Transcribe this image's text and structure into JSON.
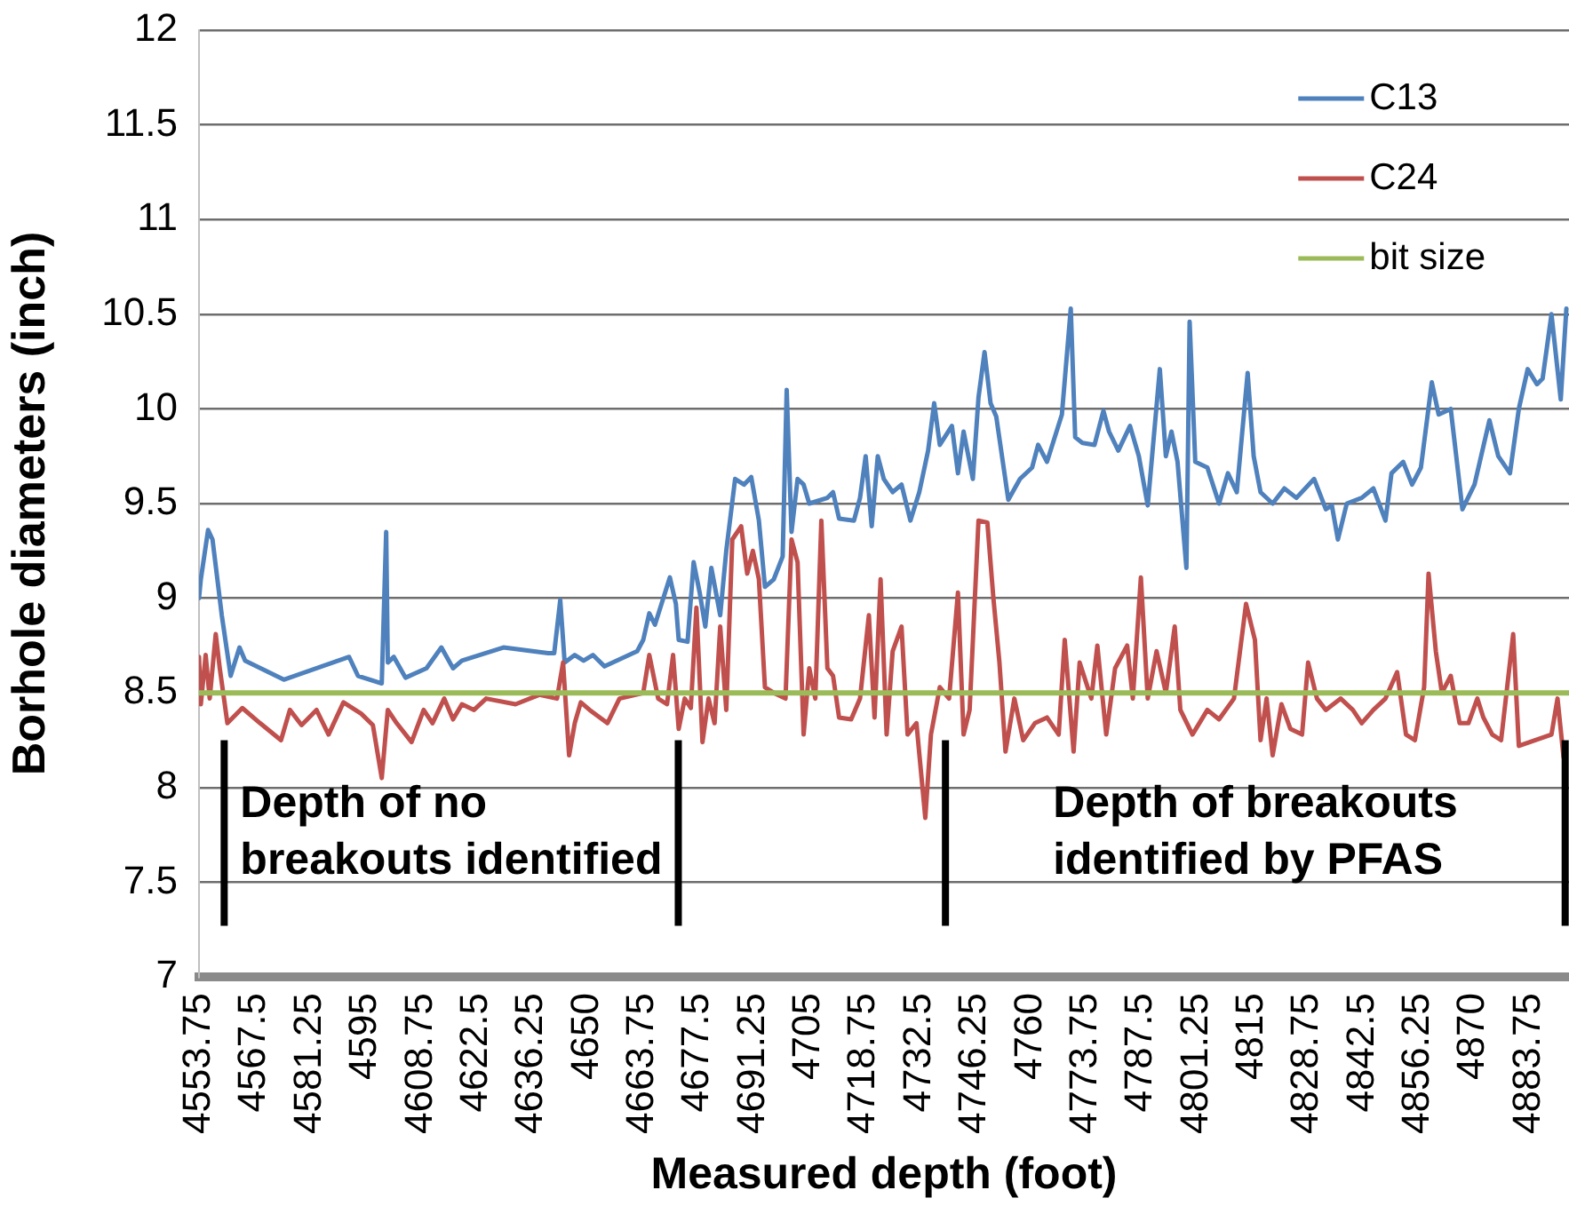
{
  "chart_data": {
    "type": "line",
    "xlabel": "Measured depth (foot)",
    "ylabel": "Borhole diameters (inch)",
    "xlim": [
      4553.75,
      4893.75
    ],
    "xticks": [
      4553.75,
      4567.5,
      4581.25,
      4595,
      4608.75,
      4622.5,
      4636.25,
      4650,
      4663.75,
      4677.5,
      4691.25,
      4705,
      4718.75,
      4732.5,
      4746.25,
      4760,
      4773.75,
      4787.5,
      4801.25,
      4815,
      4828.75,
      4842.5,
      4856.25,
      4870,
      4883.75
    ],
    "ylim": [
      7,
      12
    ],
    "yticks": [
      7,
      7.5,
      8,
      8.5,
      9,
      9.5,
      10,
      10.5,
      11,
      11.5,
      12
    ],
    "grid": "y",
    "legend": "top right",
    "series": [
      {
        "name": "C13",
        "color": "#4f81bd",
        "x": [
          4553.75,
          4554.2,
          4556.0,
          4557.1,
          4559.4,
          4561.6,
          4563.8,
          4565.2,
          4574.8,
          4591.0,
          4593.2,
          4599.1,
          4600.2,
          4600.6,
          4602.1,
          4605.0,
          4610.2,
          4613.9,
          4616.8,
          4619.0,
          4629.3,
          4640.4,
          4641.9,
          4643.4,
          4644.5,
          4647.0,
          4649.2,
          4651.5,
          4654.4,
          4662.5,
          4664.0,
          4665.5,
          4666.9,
          4670.6,
          4672.1,
          4672.8,
          4675.0,
          4676.5,
          4678.0,
          4679.4,
          4680.9,
          4683.1,
          4684.6,
          4686.8,
          4689.0,
          4690.8,
          4692.7,
          4694.2,
          4696.4,
          4698.6,
          4699.6,
          4700.8,
          4702.3,
          4703.8,
          4705.2,
          4709.7,
          4711.1,
          4712.6,
          4716.3,
          4717.8,
          4719.2,
          4720.7,
          4722.2,
          4723.7,
          4725.9,
          4728.1,
          4730.3,
          4732.5,
          4734.7,
          4736.2,
          4737.6,
          4740.6,
          4742.1,
          4743.5,
          4745.8,
          4747.2,
          4748.7,
          4750.2,
          4751.6,
          4754.6,
          4757.5,
          4760.5,
          4762.0,
          4764.2,
          4767.9,
          4770.1,
          4771.2,
          4773.0,
          4776.0,
          4778.2,
          4779.6,
          4781.9,
          4784.8,
          4787.0,
          4789.2,
          4792.2,
          4793.7,
          4795.1,
          4796.6,
          4798.8,
          4799.6,
          4801.0,
          4804.0,
          4806.9,
          4809.1,
          4811.3,
          4814.0,
          4815.5,
          4817.2,
          4820.2,
          4823.1,
          4826.1,
          4830.5,
          4833.4,
          4834.9,
          4836.4,
          4838.6,
          4842.3,
          4845.2,
          4848.2,
          4849.7,
          4852.6,
          4854.8,
          4857.0,
          4859.7,
          4861.4,
          4864.4,
          4867.3,
          4870.3,
          4874.0,
          4876.2,
          4879.1,
          4881.3,
          4883.5,
          4885.8,
          4887.2,
          4889.4,
          4891.7,
          4893.1
        ],
        "values": [
          9.0,
          9.1,
          9.36,
          9.31,
          8.91,
          8.59,
          8.74,
          8.67,
          8.57,
          8.69,
          8.59,
          8.55,
          9.35,
          8.66,
          8.69,
          8.58,
          8.63,
          8.74,
          8.63,
          8.67,
          8.74,
          8.71,
          8.71,
          8.99,
          8.66,
          8.7,
          8.67,
          8.7,
          8.64,
          8.72,
          8.78,
          8.92,
          8.86,
          9.11,
          8.97,
          8.78,
          8.77,
          9.19,
          9.03,
          8.85,
          9.16,
          8.91,
          9.25,
          9.63,
          9.6,
          9.64,
          9.41,
          9.06,
          9.1,
          9.22,
          10.1,
          9.35,
          9.63,
          9.6,
          9.5,
          9.53,
          9.56,
          9.42,
          9.41,
          9.53,
          9.75,
          9.38,
          9.75,
          9.63,
          9.56,
          9.6,
          9.41,
          9.56,
          9.78,
          10.03,
          9.81,
          9.91,
          9.66,
          9.88,
          9.63,
          10.06,
          10.3,
          10.03,
          9.96,
          9.52,
          9.63,
          9.69,
          9.81,
          9.72,
          9.97,
          10.53,
          9.85,
          9.82,
          9.81,
          9.99,
          9.88,
          9.78,
          9.91,
          9.75,
          9.49,
          10.21,
          9.75,
          9.88,
          9.72,
          9.16,
          10.46,
          9.72,
          9.69,
          9.5,
          9.66,
          9.56,
          10.19,
          9.75,
          9.56,
          9.5,
          9.58,
          9.53,
          9.63,
          9.47,
          9.49,
          9.31,
          9.5,
          9.53,
          9.58,
          9.41,
          9.66,
          9.72,
          9.6,
          9.69,
          10.14,
          9.97,
          10.0,
          9.47,
          9.6,
          9.94,
          9.75,
          9.66,
          10.0,
          10.21,
          10.13,
          10.16,
          10.5,
          10.05,
          10.53
        ]
      },
      {
        "name": "C24",
        "color": "#c0504d",
        "x": [
          4553.75,
          4554.2,
          4555.4,
          4556.4,
          4557.9,
          4558.9,
          4560.8,
          4564.5,
          4568.9,
          4574.1,
          4576.3,
          4579.2,
          4582.9,
          4585.9,
          4589.6,
          4594.0,
          4596.9,
          4599.1,
          4600.6,
          4602.8,
          4606.5,
          4609.5,
          4611.7,
          4614.6,
          4616.8,
          4619.0,
          4622.0,
          4625.0,
          4632.3,
          4638.2,
          4642.6,
          4644.1,
          4645.6,
          4647.0,
          4648.5,
          4650.7,
          4655.1,
          4658.1,
          4664.0,
          4665.5,
          4667.7,
          4669.9,
          4671.4,
          4672.8,
          4674.3,
          4675.8,
          4677.2,
          4678.7,
          4680.2,
          4681.7,
          4683.1,
          4684.6,
          4686.1,
          4688.3,
          4689.8,
          4691.2,
          4692.7,
          4694.2,
          4696.4,
          4699.3,
          4700.8,
          4702.3,
          4703.8,
          4705.2,
          4706.7,
          4708.2,
          4709.7,
          4711.1,
          4712.6,
          4715.6,
          4717.8,
          4720.0,
          4721.4,
          4722.9,
          4724.4,
          4725.9,
          4728.1,
          4729.6,
          4731.8,
          4734.0,
          4735.4,
          4737.6,
          4739.9,
          4742.1,
          4743.5,
          4745.0,
          4747.2,
          4749.4,
          4750.9,
          4752.4,
          4753.9,
          4756.1,
          4758.3,
          4761.2,
          4764.2,
          4767.1,
          4768.6,
          4770.8,
          4772.3,
          4775.2,
          4776.7,
          4778.9,
          4781.1,
          4784.1,
          4785.5,
          4787.5,
          4789.2,
          4791.4,
          4793.7,
          4795.9,
          4797.3,
          4800.3,
          4804.0,
          4806.9,
          4810.6,
          4812.1,
          4813.6,
          4815.8,
          4817.2,
          4818.7,
          4820.2,
          4822.4,
          4824.6,
          4827.5,
          4829.0,
          4831.2,
          4833.4,
          4837.1,
          4840.1,
          4842.3,
          4845.2,
          4848.2,
          4851.1,
          4853.3,
          4855.5,
          4857.8,
          4858.9,
          4860.7,
          4862.2,
          4864.4,
          4866.6,
          4868.8,
          4871.0,
          4872.5,
          4874.7,
          4876.9,
          4879.9,
          4881.3,
          4889.4,
          4890.9,
          4892.4
        ],
        "values": [
          8.69,
          8.44,
          8.7,
          8.47,
          8.81,
          8.63,
          8.34,
          8.42,
          8.34,
          8.25,
          8.41,
          8.33,
          8.41,
          8.28,
          8.45,
          8.39,
          8.33,
          8.05,
          8.41,
          8.34,
          8.24,
          8.41,
          8.34,
          8.47,
          8.36,
          8.44,
          8.41,
          8.47,
          8.44,
          8.49,
          8.47,
          8.66,
          8.17,
          8.34,
          8.45,
          8.41,
          8.34,
          8.47,
          8.5,
          8.7,
          8.47,
          8.44,
          8.7,
          8.31,
          8.47,
          8.42,
          8.95,
          8.24,
          8.47,
          8.34,
          8.85,
          8.41,
          9.31,
          9.38,
          9.13,
          9.25,
          9.1,
          8.53,
          8.5,
          8.47,
          9.31,
          9.19,
          8.28,
          8.63,
          8.47,
          9.41,
          8.63,
          8.59,
          8.37,
          8.36,
          8.47,
          8.91,
          8.37,
          9.1,
          8.28,
          8.72,
          8.85,
          8.28,
          8.34,
          7.84,
          8.28,
          8.53,
          8.47,
          9.03,
          8.28,
          8.41,
          9.41,
          9.4,
          9.0,
          8.66,
          8.19,
          8.47,
          8.25,
          8.34,
          8.37,
          8.28,
          8.78,
          8.19,
          8.66,
          8.47,
          8.75,
          8.28,
          8.63,
          8.75,
          8.47,
          9.11,
          8.47,
          8.72,
          8.5,
          8.85,
          8.41,
          8.28,
          8.41,
          8.36,
          8.47,
          8.72,
          8.97,
          8.78,
          8.25,
          8.47,
          8.17,
          8.44,
          8.31,
          8.28,
          8.66,
          8.47,
          8.41,
          8.47,
          8.41,
          8.34,
          8.41,
          8.47,
          8.61,
          8.28,
          8.25,
          8.53,
          9.13,
          8.72,
          8.5,
          8.59,
          8.34,
          8.34,
          8.47,
          8.37,
          8.28,
          8.25,
          8.81,
          8.22,
          8.28,
          8.47,
          8.16
        ]
      },
      {
        "name": "bit size",
        "color": "#9bbb59",
        "x": [
          4553.75,
          4893.75
        ],
        "values": [
          8.5,
          8.5
        ]
      }
    ],
    "ref_lines": [
      {
        "axis": "x",
        "value": 4560,
        "color": "#000000"
      },
      {
        "axis": "x",
        "value": 4672.7,
        "color": "#000000"
      },
      {
        "axis": "x",
        "value": 4739,
        "color": "#000000"
      },
      {
        "axis": "x",
        "value": 4892.8,
        "color": "#000000"
      }
    ],
    "annotations": [
      "Depth of no\nbreakouts identified",
      "Depth of breakouts\nidentified by PFAS"
    ]
  }
}
